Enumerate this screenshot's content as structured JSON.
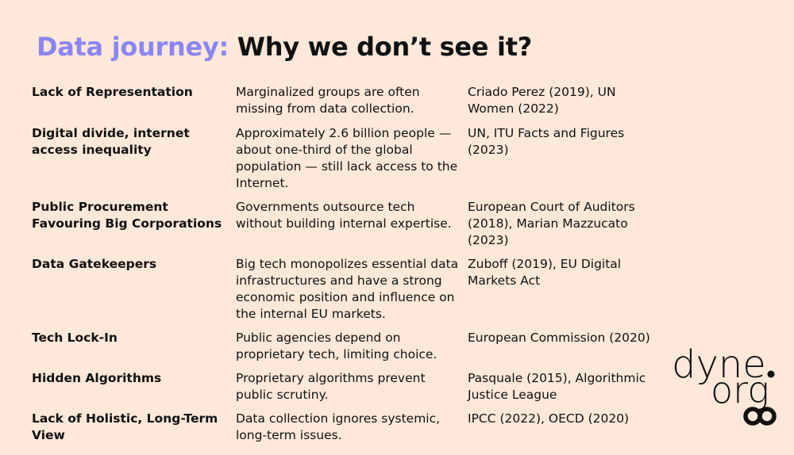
{
  "title": {
    "accent": "Data journey:",
    "main": "Why we don’t see it?"
  },
  "rows": [
    {
      "issue": "Lack of Representation",
      "description": "Marginalized groups are often missing from data collection.",
      "source": "Criado Perez (2019), UN Women (2022)"
    },
    {
      "issue": "Digital divide, internet access inequality",
      "description": "Approximately 2.6 billion people — about one-third of the global population — still lack access to the Internet.",
      "source": "UN, ITU Facts and Figures (2023)"
    },
    {
      "issue": "Public Procurement Favouring Big Corporations",
      "description": "Governments outsource tech without building internal expertise.",
      "source": "European Court of Auditors (2018), Marian Mazzucato (2023)"
    },
    {
      "issue": "Data Gatekeepers",
      "description": "Big tech monopolizes essential data infrastructures and have a strong economic position and influence on the internal EU markets.",
      "source": "Zuboff (2019), EU Digital Markets Act"
    },
    {
      "issue": "Tech Lock-In",
      "description": "Public agencies depend on proprietary tech, limiting choice.",
      "source": "European Commission (2020)"
    },
    {
      "issue": "Hidden Algorithms",
      "description": "Proprietary algorithms prevent public scrutiny.",
      "source": "Pasquale (2015), Algorithmic Justice League"
    },
    {
      "issue": "Lack of Holistic, Long-Term View",
      "description": "Data collection ignores systemic, long-term issues.",
      "source": "IPCC (2022), OECD (2020)"
    }
  ],
  "logo": {
    "line1": "dyne",
    "line2": "org"
  }
}
